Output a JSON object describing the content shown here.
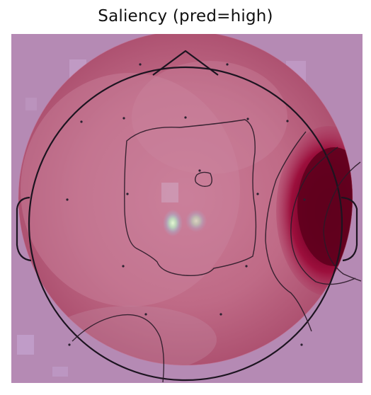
{
  "title": "Saliency (pred=high)",
  "colors": {
    "background_tint": "#b78fb5",
    "head_fill_light": "#c77f97",
    "head_fill_mid": "#b85a78",
    "hotspot_dark": "#650021",
    "hotspot_mid": "#a2163d",
    "contour_stroke": "#2a1a28",
    "outline_stroke": "#1b1420",
    "sensor_dot": "#2a2030",
    "speckle_green": "#b7f0c4",
    "speckle_cyan": "#8fd6ef",
    "speckle_white": "#e8ffd7"
  },
  "icons": {
    "head": "head-outline",
    "nose": "nose-triangle",
    "ears": "ear-outlines",
    "sensors": "electrode-dots"
  }
}
